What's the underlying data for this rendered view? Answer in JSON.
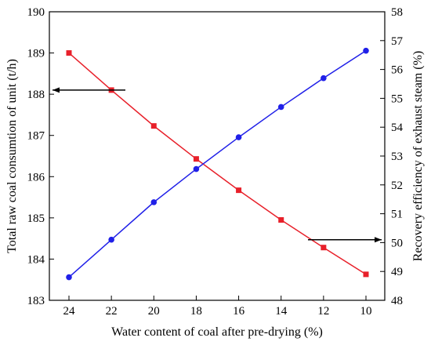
{
  "chart_data": {
    "type": "line",
    "title": "",
    "xlabel": "Water content of coal after pre-drying (%)",
    "ylabel_left": "Total raw coal consumtion of unit (t/h)",
    "ylabel_right": "Recovery efficiency of exhaust steam (%)",
    "x_categories": [
      "24",
      "22",
      "20",
      "18",
      "16",
      "14",
      "12",
      "10"
    ],
    "x_reversed": true,
    "ylim_left": [
      183,
      190
    ],
    "ylim_right": [
      48,
      58
    ],
    "left_ticks": [
      "183",
      "184",
      "185",
      "186",
      "187",
      "188",
      "189",
      "190"
    ],
    "right_ticks": [
      "48",
      "49",
      "50",
      "51",
      "52",
      "53",
      "54",
      "55",
      "56",
      "57",
      "58"
    ],
    "grid": false,
    "series": [
      {
        "axis": "left",
        "color": "#e8202a",
        "marker": "square",
        "x": [
          24,
          22,
          20,
          18,
          16,
          14,
          12,
          10
        ],
        "values": [
          189.0,
          188.1,
          187.23,
          186.43,
          185.67,
          184.95,
          184.28,
          183.63
        ]
      },
      {
        "axis": "right",
        "color": "#2020e8",
        "marker": "circle",
        "x": [
          24,
          22,
          20,
          18,
          16,
          14,
          12,
          10
        ],
        "values": [
          48.8,
          50.1,
          51.4,
          52.55,
          53.65,
          54.7,
          55.7,
          56.65
        ]
      }
    ],
    "annotations": [
      {
        "type": "arrow",
        "direction": "left",
        "points_to": "left axis",
        "series": 0
      },
      {
        "type": "arrow",
        "direction": "right",
        "points_to": "right axis",
        "series": 1
      }
    ]
  }
}
